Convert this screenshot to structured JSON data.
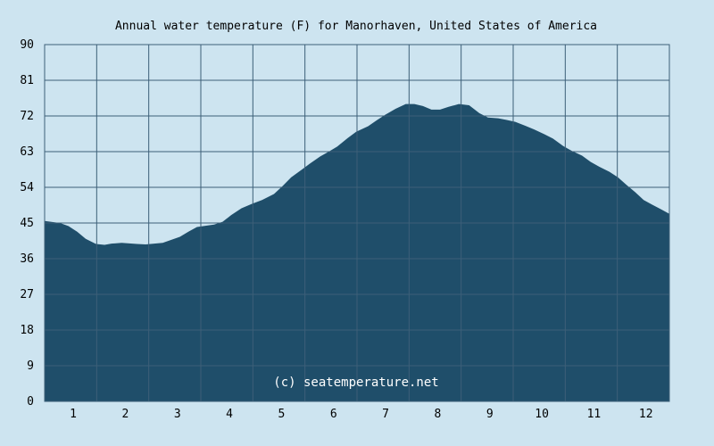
{
  "chart_data": {
    "type": "area",
    "title": "Annual water temperature (F) for Manorhaven, United States of America",
    "xlabel": "",
    "ylabel": "",
    "x_tick_labels": [
      "1",
      "2",
      "3",
      "4",
      "5",
      "6",
      "7",
      "8",
      "9",
      "10",
      "11",
      "12"
    ],
    "y_ticks": [
      0,
      9,
      18,
      27,
      36,
      45,
      54,
      63,
      72,
      81,
      90
    ],
    "ylim": [
      0,
      90
    ],
    "xlim": [
      1,
      366
    ],
    "grid": true,
    "legend": "none",
    "watermark": "(c) seatemperature.net",
    "colors": {
      "fill": "#1f4e6a",
      "plot_background": "#cde4f0",
      "grid": "#3d5f78"
    },
    "series": [
      {
        "x": [
          1,
          10,
          15,
          20,
          25,
          31,
          36,
          40,
          46,
          55,
          60,
          70,
          80,
          85,
          90,
          95,
          100,
          105,
          110,
          116,
          122,
          128,
          135,
          140,
          145,
          151,
          156,
          162,
          167,
          172,
          178,
          183,
          190,
          195,
          200,
          206,
          212,
          217,
          222,
          227,
          232,
          237,
          243,
          249,
          255,
          260,
          266,
          271,
          276,
          282,
          287,
          293,
          298,
          304,
          309,
          315,
          320,
          325,
          331,
          336,
          341,
          346,
          351,
          356,
          361,
          366
        ],
        "y": [
          45.5,
          45.0,
          44.2,
          42.8,
          41.0,
          39.7,
          39.5,
          39.8,
          40.0,
          39.7,
          39.6,
          40.0,
          41.5,
          42.8,
          44.0,
          44.3,
          44.6,
          45.3,
          47.0,
          48.7,
          49.8,
          50.8,
          52.3,
          54.3,
          56.5,
          58.4,
          60.0,
          61.8,
          63.0,
          64.3,
          66.4,
          68.0,
          69.4,
          70.9,
          72.3,
          73.8,
          75.0,
          75.0,
          74.5,
          73.6,
          73.6,
          74.3,
          75.0,
          74.7,
          72.7,
          71.6,
          71.4,
          71.0,
          70.5,
          69.5,
          68.6,
          67.4,
          66.3,
          64.4,
          63.2,
          62.0,
          60.4,
          59.2,
          57.9,
          56.5,
          54.6,
          52.8,
          50.8,
          49.6,
          48.5,
          47.3
        ]
      }
    ]
  }
}
